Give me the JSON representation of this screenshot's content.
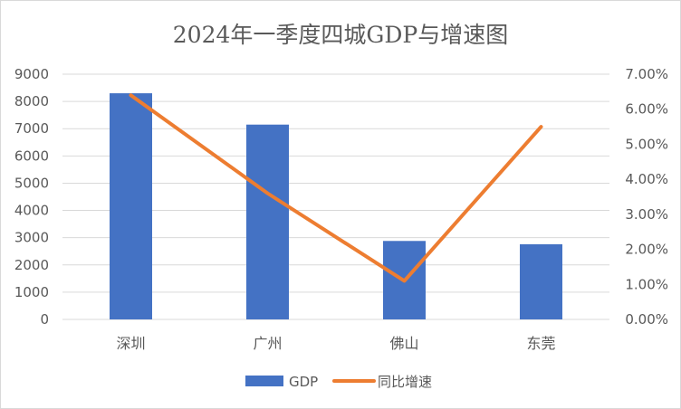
{
  "chart_data": {
    "type": "bar",
    "title": "2024年一季度四城GDP与增速图",
    "categories": [
      "深圳",
      "广州",
      "佛山",
      "东莞"
    ],
    "series": [
      {
        "name": "GDP",
        "type": "bar",
        "axis": "left",
        "color": "#4472C4",
        "values": [
          8300,
          7150,
          2880,
          2760
        ]
      },
      {
        "name": "同比增速",
        "type": "line",
        "axis": "right",
        "color": "#ED7D31",
        "values": [
          6.4,
          3.6,
          1.1,
          5.5
        ]
      }
    ],
    "y_left": {
      "min": 0,
      "max": 9000,
      "step": 1000,
      "ticks": [
        "0",
        "1000",
        "2000",
        "3000",
        "4000",
        "5000",
        "6000",
        "7000",
        "8000",
        "9000"
      ]
    },
    "y_right": {
      "min": 0,
      "max": 7,
      "step": 1,
      "ticks": [
        "0.00%",
        "1.00%",
        "2.00%",
        "3.00%",
        "4.00%",
        "5.00%",
        "6.00%",
        "7.00%"
      ]
    },
    "grid": true,
    "legend_position": "bottom",
    "colors": {
      "bar": "#4472C4",
      "line": "#ED7D31",
      "grid": "#d9d9d9",
      "text": "#595959"
    }
  }
}
